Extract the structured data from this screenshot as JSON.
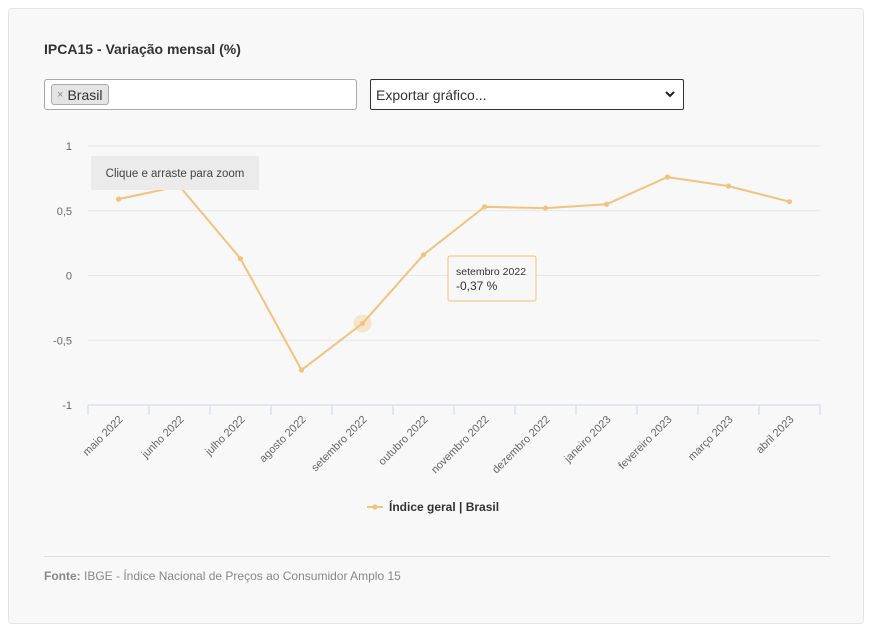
{
  "header": {
    "title": "IPCA15 - Variação mensal (%)"
  },
  "filter": {
    "tag_label": "Brasil",
    "tag_remove": "×"
  },
  "export": {
    "selected": "Exportar gráfico..."
  },
  "zoom_hint": "Clique e arraste para zoom",
  "tooltip": {
    "date": "setembro 2022",
    "value": "-0,37 %"
  },
  "source": {
    "label": "Fonte:",
    "text": "IBGE - Índice Nacional de Preços ao Consumidor Amplo 15"
  },
  "colors": {
    "series": "#f2c27f",
    "axis": "#ccd6eb",
    "grid": "#e6e6e6"
  },
  "chart_data": {
    "type": "line",
    "title": "IPCA15 - Variação mensal (%)",
    "categories": [
      "maio 2022",
      "junho 2022",
      "julho 2022",
      "agosto 2022",
      "setembro 2022",
      "outubro 2022",
      "novembro 2022",
      "dezembro 2022",
      "janeiro 2023",
      "fevereiro 2023",
      "março 2023",
      "abril 2023"
    ],
    "series": [
      {
        "name": "Índice geral | Brasil",
        "values": [
          0.59,
          0.69,
          0.13,
          -0.73,
          -0.37,
          0.16,
          0.53,
          0.52,
          0.55,
          0.76,
          0.69,
          0.57
        ]
      }
    ],
    "y_ticks": [
      "1",
      "0,5",
      "0",
      "-0,5",
      "-1"
    ],
    "ylim": [
      -1,
      1
    ],
    "grid": true,
    "legend": "bottom-center"
  }
}
